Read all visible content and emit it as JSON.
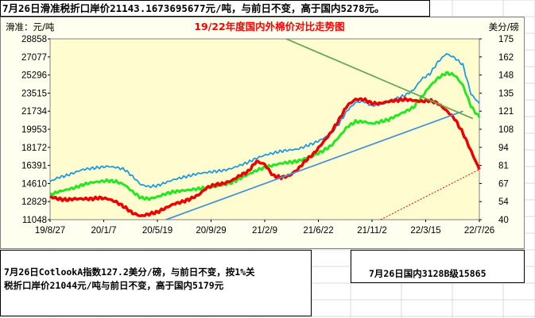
{
  "notes": {
    "top": "7月26日滑准税折口岸价21143.1673695677元/吨，与前日不变，高于国内5278元。",
    "bottom_left_line1": "7月26日CotlookA指数127.2美分/磅，与前日不变，按1%关",
    "bottom_left_line2": "税折口岸价21044元/吨与前日不变，高于国内5179元",
    "bottom_right": "7月26日国内3128B级15865"
  },
  "chart_data": {
    "type": "line",
    "title": "19/22年度国内外棉价对比走势图",
    "left_unit": "滑准：元/吨",
    "right_unit": "美分/磅",
    "left_ticks": [
      "28858",
      "27077",
      "25296",
      "23515",
      "21734",
      "19953",
      "18172",
      "16391",
      "14610",
      "12829",
      "11048"
    ],
    "right_ticks": [
      "175",
      "162",
      "148",
      "135",
      "121",
      "108",
      "94",
      "81",
      "67",
      "54",
      "40"
    ],
    "x_ticks": [
      "19/8/27",
      "20/1/7",
      "20/5/19",
      "20/9/29",
      "21/2/9",
      "21/6/22",
      "21/11/2",
      "22/3/15",
      "22/7/26"
    ],
    "ylim_left": [
      11048,
      28858
    ],
    "ylim_right": [
      40,
      175
    ],
    "series": [
      {
        "color": "#1e9be0",
        "axis": "left",
        "values": [
          14800,
          15200,
          15400,
          15700,
          16000,
          16100,
          16200,
          16300,
          16200,
          16000,
          15300,
          14500,
          14300,
          14400,
          14700,
          15000,
          15200,
          15400,
          15600,
          15700,
          15800,
          15900,
          16100,
          16400,
          16700,
          17100,
          17400,
          17600,
          17800,
          17900,
          18000,
          18300,
          18600,
          19000,
          19500,
          20500,
          21800,
          22600,
          22700,
          22300,
          22400,
          22600,
          23000,
          23300,
          23800,
          24900,
          25400,
          26600,
          27400,
          27000,
          26300,
          23400,
          22500
        ]
      },
      {
        "color": "#22e822",
        "axis": "left",
        "values": [
          13500,
          13800,
          14000,
          14200,
          14500,
          14700,
          14800,
          14900,
          14800,
          14500,
          13800,
          13200,
          13100,
          13300,
          13600,
          13800,
          13900,
          14000,
          14100,
          14200,
          14300,
          14500,
          14700,
          15100,
          15500,
          15900,
          16200,
          16400,
          16600,
          16700,
          16800,
          17100,
          17400,
          17800,
          18300,
          19200,
          20200,
          20700,
          20700,
          20500,
          20700,
          20900,
          21300,
          21700,
          22100,
          23100,
          24200,
          25000,
          25500,
          25300,
          24300,
          22200,
          21100
        ]
      },
      {
        "color": "#ee0000",
        "axis": "left",
        "values": [
          13300,
          13100,
          13000,
          13100,
          13100,
          13100,
          13200,
          13100,
          12800,
          12300,
          11700,
          11400,
          11600,
          11800,
          12200,
          12600,
          12800,
          13100,
          13500,
          14200,
          14500,
          14600,
          14900,
          15400,
          15800,
          16800,
          16500,
          15400,
          15200,
          15400,
          16000,
          16900,
          17600,
          18600,
          19600,
          20900,
          22300,
          22900,
          22900,
          22500,
          22500,
          22700,
          22800,
          22900,
          22800,
          22700,
          22800,
          22500,
          21800,
          21000,
          19600,
          17800,
          16000
        ]
      }
    ],
    "annotations": [
      {
        "type": "trendline",
        "color": "#4a90d9",
        "from": [
          0.27,
          11048
        ],
        "to": [
          0.962,
          21734
        ]
      },
      {
        "type": "trendline",
        "color": "#6aa84f",
        "from": [
          0.55,
          28858
        ],
        "to": [
          0.985,
          21000
        ]
      },
      {
        "type": "dashed",
        "color": "#ee0000",
        "from": [
          0.77,
          11048
        ],
        "to": [
          1.0,
          16000
        ]
      }
    ]
  }
}
